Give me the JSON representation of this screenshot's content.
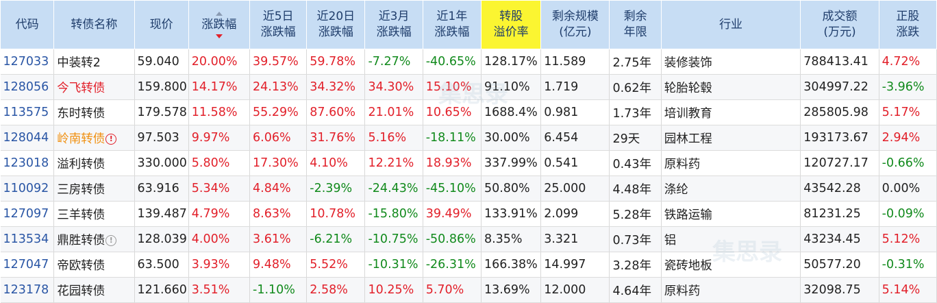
{
  "headers": {
    "code": "代码",
    "name": "转债名称",
    "price": "现价",
    "change": "涨跌幅",
    "chg5d_l1": "近5日",
    "chg5d_l2": "涨跌幅",
    "chg20d_l1": "近20日",
    "chg20d_l2": "涨跌幅",
    "chg3m_l1": "近3月",
    "chg3m_l2": "涨跌幅",
    "chg1y_l1": "近1年",
    "chg1y_l2": "涨跌幅",
    "premium_l1": "转股",
    "premium_l2": "溢价率",
    "scale_l1": "剩余规模",
    "scale_l2": "(亿元)",
    "term_l1": "剩余",
    "term_l2": "年限",
    "industry": "行业",
    "volume_l1": "成交额",
    "volume_l2": "(万元)",
    "stock_l1": "正股",
    "stock_l2": "涨跌"
  },
  "sort": {
    "column": "change",
    "direction": "desc",
    "icon": "sort-desc-icon"
  },
  "colors": {
    "up": "#e2202a",
    "down": "#118a1c",
    "code": "#2a56a5",
    "header_bg": "#c7ddf4",
    "highlight": "#fbf531",
    "warning": "#f09011"
  },
  "rows": [
    {
      "code": "127033",
      "name": "中装转2",
      "price": "59.040",
      "change": "20.00%",
      "c5": "39.57%",
      "c20": "59.78%",
      "c3m": "-7.27%",
      "c1y": "-40.65%",
      "premium": "128.17%",
      "scale": "11.589",
      "term": "2.75年",
      "industry": "装修装饰",
      "volume": "788413.41",
      "stock": "4.72%",
      "icon": ""
    },
    {
      "code": "128056",
      "name": "今飞转债",
      "price": "159.800",
      "change": "14.17%",
      "c5": "24.13%",
      "c20": "34.32%",
      "c3m": "34.30%",
      "c1y": "15.10%",
      "premium": "91.10%",
      "scale": "1.719",
      "term": "0.62年",
      "industry": "轮胎轮毂",
      "volume": "304997.22",
      "stock": "-3.96%",
      "icon": "",
      "name_style": "warn"
    },
    {
      "code": "113575",
      "name": "东时转债",
      "price": "179.578",
      "change": "11.58%",
      "c5": "55.29%",
      "c20": "87.60%",
      "c3m": "21.01%",
      "c1y": "10.65%",
      "premium": "1688.4%",
      "scale": "0.981",
      "term": "1.73年",
      "industry": "培训教育",
      "volume": "285805.98",
      "stock": "5.17%",
      "icon": ""
    },
    {
      "code": "128044",
      "name": "岭南转债",
      "price": "97.503",
      "change": "9.97%",
      "c5": "6.06%",
      "c20": "31.76%",
      "c3m": "5.16%",
      "c1y": "-18.11%",
      "premium": "30.00%",
      "scale": "6.454",
      "term": "29天",
      "industry": "园林工程",
      "volume": "193173.67",
      "stock": "2.94%",
      "icon": "red",
      "name_style": "orange"
    },
    {
      "code": "123018",
      "name": "溢利转债",
      "price": "330.000",
      "change": "5.80%",
      "c5": "17.30%",
      "c20": "4.10%",
      "c3m": "12.21%",
      "c1y": "18.93%",
      "premium": "337.99%",
      "scale": "0.541",
      "term": "0.43年",
      "industry": "原料药",
      "volume": "120727.17",
      "stock": "-0.66%",
      "icon": ""
    },
    {
      "code": "110092",
      "name": "三房转债",
      "price": "63.916",
      "change": "5.34%",
      "c5": "4.84%",
      "c20": "-2.39%",
      "c3m": "-24.43%",
      "c1y": "-45.10%",
      "premium": "50.80%",
      "scale": "25.000",
      "term": "4.48年",
      "industry": "涤纶",
      "volume": "43542.28",
      "stock": "0.00%",
      "icon": ""
    },
    {
      "code": "127097",
      "name": "三羊转债",
      "price": "139.487",
      "change": "4.79%",
      "c5": "8.63%",
      "c20": "10.78%",
      "c3m": "-15.80%",
      "c1y": "39.49%",
      "premium": "133.91%",
      "scale": "2.099",
      "term": "5.28年",
      "industry": "铁路运输",
      "volume": "81231.25",
      "stock": "-0.09%",
      "icon": ""
    },
    {
      "code": "113534",
      "name": "鼎胜转债",
      "price": "128.039",
      "change": "4.00%",
      "c5": "3.61%",
      "c20": "-6.21%",
      "c3m": "-10.75%",
      "c1y": "-50.86%",
      "premium": "8.35%",
      "scale": "3.321",
      "term": "0.73年",
      "industry": "铝",
      "volume": "43234.45",
      "stock": "5.12%",
      "icon": "grey"
    },
    {
      "code": "127047",
      "name": "帝欧转债",
      "price": "63.500",
      "change": "3.93%",
      "c5": "9.48%",
      "c20": "5.52%",
      "c3m": "-10.31%",
      "c1y": "-26.31%",
      "premium": "166.38%",
      "scale": "14.997",
      "term": "3.28年",
      "industry": "瓷砖地板",
      "volume": "50577.20",
      "stock": "-0.31%",
      "icon": ""
    },
    {
      "code": "123178",
      "name": "花园转债",
      "price": "121.660",
      "change": "3.51%",
      "c5": "-1.10%",
      "c20": "2.58%",
      "c3m": "10.25%",
      "c1y": "5.70%",
      "premium": "13.69%",
      "scale": "12.000",
      "term": "4.64年",
      "industry": "原料药",
      "volume": "32098.75",
      "stock": "5.14%",
      "icon": ""
    }
  ]
}
